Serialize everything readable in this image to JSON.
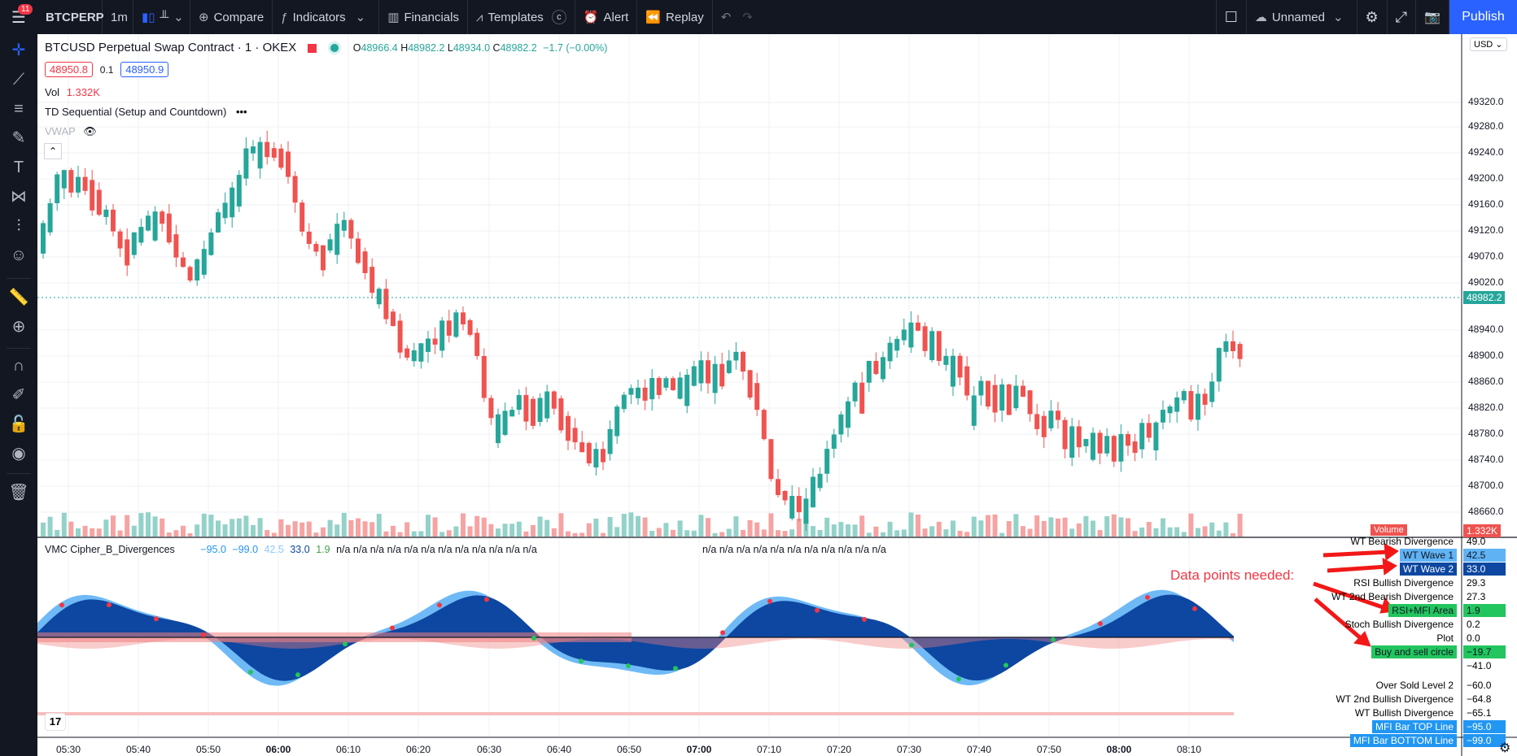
{
  "topbar": {
    "badge": "11",
    "symbol": "BTCPERP",
    "interval": "1m",
    "compare": "Compare",
    "indicators": "Indicators",
    "financials": "Financials",
    "templates": "Templates",
    "templates_badge": "c",
    "alert": "Alert",
    "replay": "Replay",
    "layout_name": "Unnamed",
    "publish": "Publish"
  },
  "legend": {
    "title": "BTCUSD Perpetual Swap Contract · 1 · OKEX",
    "o_label": "O",
    "o": "48966.4",
    "h_label": "H",
    "h": "48982.2",
    "l_label": "L",
    "l": "48934.0",
    "c_label": "C",
    "c": "48982.2",
    "change": "−1.7 (−0.00%)",
    "sell_price": "48950.8",
    "spread": "0.1",
    "buy_price": "48950.9",
    "vol_label": "Vol",
    "vol_value": "1.332K",
    "td_label": "TD Sequential (Setup and Countdown)",
    "vwap_label": "VWAP"
  },
  "price_axis": {
    "currency": "USD",
    "labels": [
      "49320.0",
      "49280.0",
      "49240.0",
      "49200.0",
      "49160.0",
      "49120.0",
      "49070.0",
      "49020.0",
      "48940.0",
      "48900.0",
      "48860.0",
      "48820.0",
      "48780.0",
      "48740.0",
      "48700.0",
      "48660.0"
    ],
    "last_price": "48982.2",
    "volume_label": "Volume",
    "volume_value": "1.332K"
  },
  "time_axis": [
    "05:30",
    "05:40",
    "05:50",
    "06:00",
    "06:10",
    "06:20",
    "06:30",
    "06:40",
    "06:50",
    "07:00",
    "07:10",
    "07:20",
    "07:30",
    "07:40",
    "07:50",
    "08:00",
    "08:10"
  ],
  "indicator": {
    "name": "VMC Cipher_B_Divergences",
    "v1": "−95.0",
    "v2": "−99.0",
    "v3": "42.5",
    "v4": "33.0",
    "v5": "1.9",
    "na_group1": "n/a n/a n/a n/a n/a n/a n/a n/a n/a n/a n/a n/a",
    "na_group2": "n/a n/a n/a n/a n/a n/a n/a n/a n/a n/a n/a"
  },
  "annotation": "Data points needed:",
  "side_labels": [
    {
      "name": "WT Bearish Divergence",
      "value": "49.0"
    },
    {
      "name": "WT Wave 1",
      "value": "42.5"
    },
    {
      "name": "WT Wave 2",
      "value": "33.0"
    },
    {
      "name": "RSI Bullish Divergence",
      "value": "29.3"
    },
    {
      "name": "WT 2nd Bearish Divergence",
      "value": "27.3"
    },
    {
      "name": "RSI+MFI Area",
      "value": "1.9"
    },
    {
      "name": "Stoch Bullish Divergence",
      "value": "0.2"
    },
    {
      "name": "Plot",
      "value": "0.0"
    },
    {
      "name": "Buy and sell circle",
      "value": "−19.7"
    },
    {
      "name": "",
      "value": "−41.0"
    },
    {
      "name": "Over Sold Level 2",
      "value": "−60.0"
    },
    {
      "name": "WT 2nd Bullish Divergence",
      "value": "−64.8"
    },
    {
      "name": "WT Bullish Divergence",
      "value": "−65.1"
    },
    {
      "name": "MFI Bar TOP Line",
      "value": "−95.0"
    },
    {
      "name": "MFI Bar BOTTOM Line",
      "value": "−99.0"
    }
  ],
  "colors": {
    "up": "#26a69a",
    "down": "#ef5350",
    "wave1": "#5fb3f5",
    "wave2": "#0d47a1",
    "mfi": "#f08080",
    "accent": "#2962ff"
  }
}
